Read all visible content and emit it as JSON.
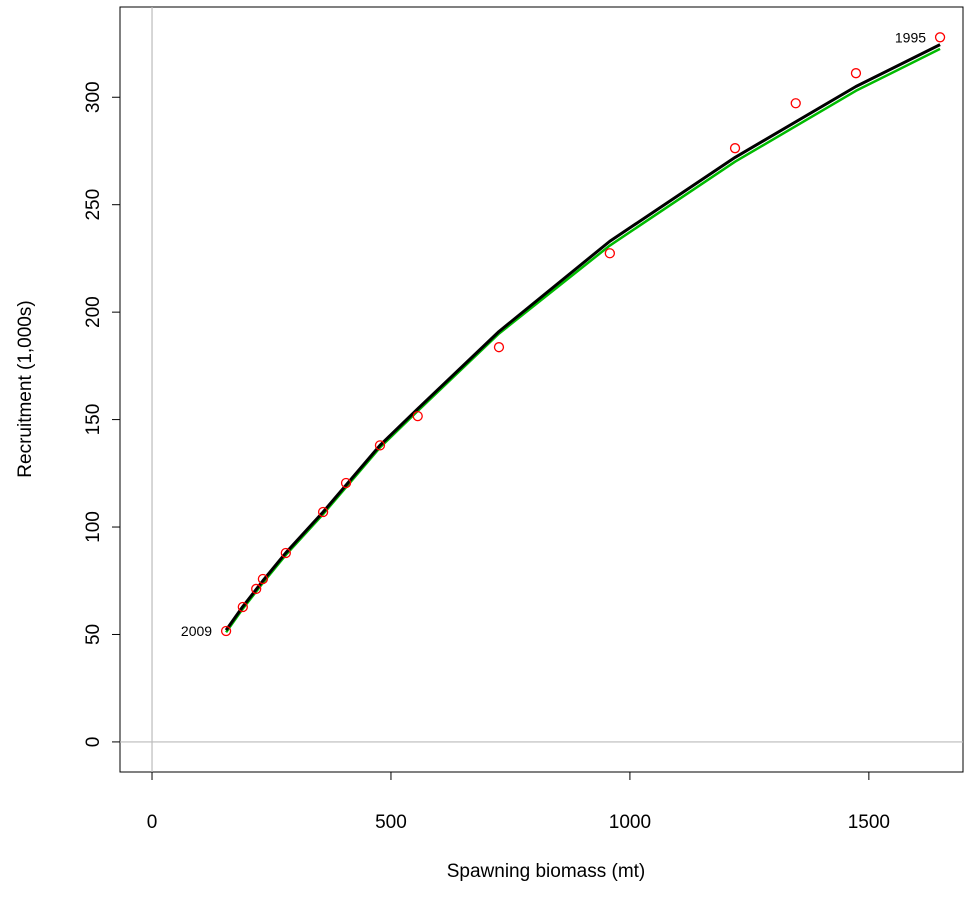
{
  "chart_data": {
    "type": "scatter",
    "x_label": "Spawning biomass (mt)",
    "y_label": "Recruitment (1,000s)",
    "xlim": [
      -67,
      1697
    ],
    "ylim": [
      -14,
      342
    ],
    "xticks": [
      0,
      500,
      1000,
      1500
    ],
    "yticks": [
      0,
      50,
      100,
      150,
      200,
      250,
      300
    ],
    "hline": 0,
    "vline": 0,
    "reference_color": "#bbbbbb",
    "series": [
      {
        "type": "line",
        "color": "#00bb00",
        "x": [
          155,
          190,
          232,
          280,
          358,
          477,
          556,
          726,
          958,
          1220,
          1473,
          1649
        ],
        "values": [
          51,
          62,
          74,
          87,
          106,
          137,
          154,
          190,
          231,
          270,
          303,
          322.5
        ]
      },
      {
        "type": "line",
        "color": "#000000",
        "x": [
          155,
          190,
          232,
          280,
          358,
          477,
          556,
          726,
          958,
          1220,
          1473,
          1649
        ],
        "values": [
          52,
          63,
          75,
          88,
          107,
          138,
          155,
          191,
          233,
          272,
          305,
          324.5
        ]
      },
      {
        "type": "scatter",
        "color": "#ff0000",
        "x": [
          155,
          190,
          218,
          232,
          280,
          358,
          406,
          477,
          556,
          726,
          958,
          1220,
          1347,
          1473,
          1649
        ],
        "values": [
          51.6,
          62.8,
          71.2,
          75.8,
          87.9,
          107,
          120.5,
          138,
          151.6,
          183.7,
          227.4,
          276.3,
          297.2,
          311.2,
          327.9
        ]
      }
    ],
    "annotations": [
      {
        "text": "2009",
        "point": 0
      },
      {
        "text": "1995",
        "point": 14
      }
    ]
  }
}
